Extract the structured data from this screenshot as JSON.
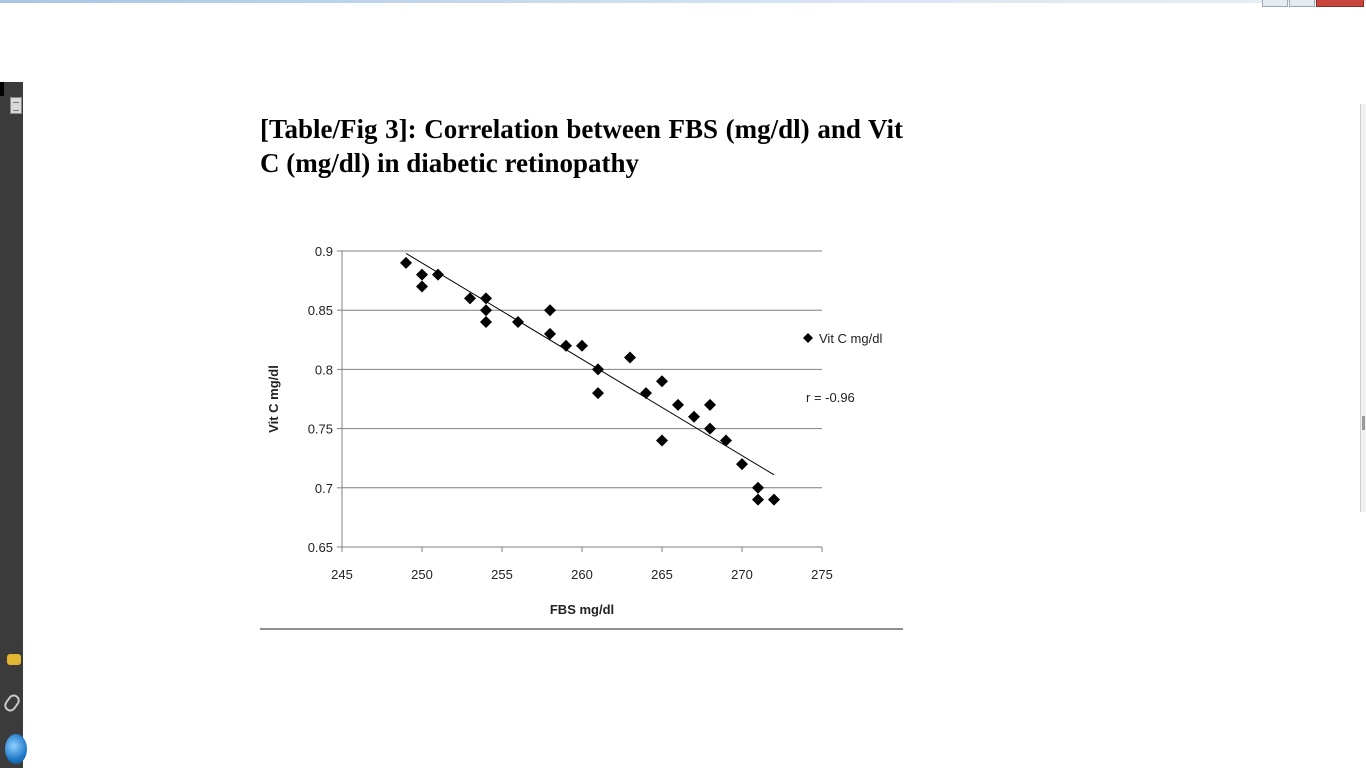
{
  "document": {
    "figure_title": "[Table/Fig 3]: Correlation between FBS (mg/dl) and Vit C (mg/dl) in diabetic retinopathy"
  },
  "icons": {
    "left_panel": [
      "pages-icon",
      "comment-icon",
      "attachment-icon",
      "globe-icon"
    ],
    "window_controls": [
      "minimize-icon",
      "maximize-icon",
      "close-icon"
    ]
  },
  "chart_data": {
    "type": "scatter",
    "title": "",
    "xlabel": "FBS mg/dl",
    "ylabel": "Vit C mg/dl",
    "xlim": [
      245,
      275
    ],
    "ylim": [
      0.65,
      0.9
    ],
    "x_ticks": [
      "245",
      "250",
      "255",
      "260",
      "265",
      "270",
      "275"
    ],
    "y_ticks": [
      "0.65",
      "0.7",
      "0.75",
      "0.8",
      "0.85",
      "0.9"
    ],
    "grid": "horizontal",
    "legend": {
      "entries": [
        "Vit C mg/dl"
      ],
      "placement": "right"
    },
    "annotation": "r = -0.96",
    "marker": "diamond",
    "series": [
      {
        "name": "Vit C mg/dl",
        "points": [
          {
            "x": 249,
            "y": 0.89
          },
          {
            "x": 250,
            "y": 0.88
          },
          {
            "x": 250,
            "y": 0.87
          },
          {
            "x": 251,
            "y": 0.88
          },
          {
            "x": 253,
            "y": 0.86
          },
          {
            "x": 254,
            "y": 0.86
          },
          {
            "x": 254,
            "y": 0.85
          },
          {
            "x": 254,
            "y": 0.84
          },
          {
            "x": 256,
            "y": 0.84
          },
          {
            "x": 258,
            "y": 0.85
          },
          {
            "x": 258,
            "y": 0.83
          },
          {
            "x": 259,
            "y": 0.82
          },
          {
            "x": 260,
            "y": 0.82
          },
          {
            "x": 261,
            "y": 0.8
          },
          {
            "x": 261,
            "y": 0.78
          },
          {
            "x": 263,
            "y": 0.81
          },
          {
            "x": 264,
            "y": 0.78
          },
          {
            "x": 265,
            "y": 0.79
          },
          {
            "x": 265,
            "y": 0.74
          },
          {
            "x": 266,
            "y": 0.77
          },
          {
            "x": 267,
            "y": 0.76
          },
          {
            "x": 268,
            "y": 0.77
          },
          {
            "x": 268,
            "y": 0.75
          },
          {
            "x": 269,
            "y": 0.74
          },
          {
            "x": 270,
            "y": 0.72
          },
          {
            "x": 271,
            "y": 0.7
          },
          {
            "x": 271,
            "y": 0.69
          },
          {
            "x": 272,
            "y": 0.69
          }
        ]
      }
    ],
    "trendline": {
      "x": [
        249,
        272
      ],
      "y": [
        0.898,
        0.711
      ]
    }
  }
}
